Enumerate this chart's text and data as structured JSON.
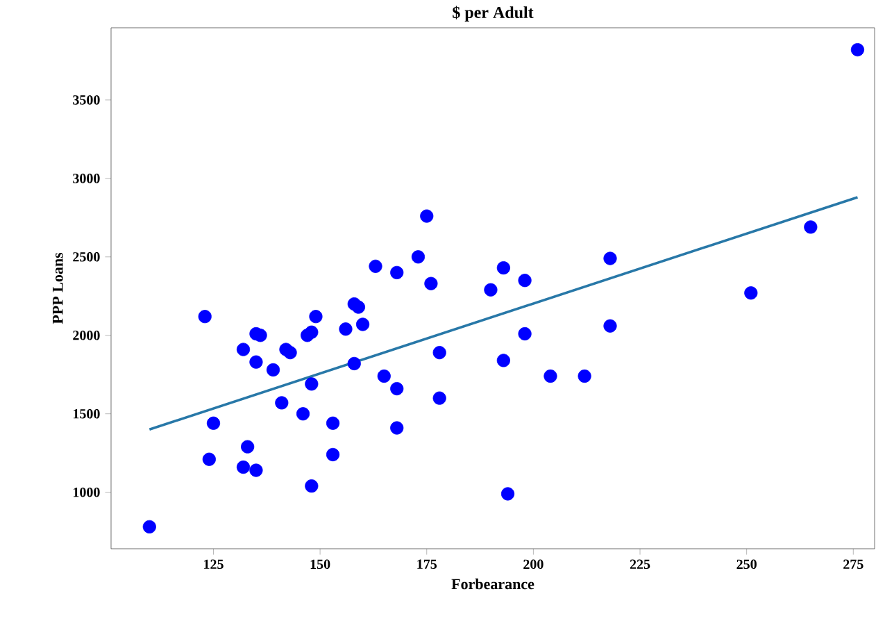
{
  "chart_data": {
    "type": "scatter",
    "title": "$ per Adult",
    "xlabel": "Forbearance",
    "ylabel": "PPP Loans",
    "xlim": [
      101,
      280
    ],
    "ylim": [
      640,
      3960
    ],
    "xticks": [
      125,
      150,
      175,
      200,
      225,
      250,
      275
    ],
    "yticks": [
      1000,
      1500,
      2000,
      2500,
      3000,
      3500
    ],
    "marker": "circle",
    "series": [
      {
        "color": "#0000ff",
        "x": [
          110,
          123,
          125,
          124,
          132,
          135,
          135,
          136,
          139,
          142,
          143,
          141,
          133,
          132,
          135,
          147,
          148,
          149,
          148,
          146,
          148,
          153,
          153,
          158,
          156,
          158,
          159,
          160,
          163,
          165,
          168,
          175,
          173,
          176,
          168,
          168,
          178,
          178,
          190,
          193,
          198,
          198,
          193,
          204,
          212,
          194,
          218,
          218,
          276,
          265,
          251
        ],
        "values": [
          780,
          2120,
          1440,
          1210,
          1910,
          1830,
          2010,
          2000,
          1780,
          1910,
          1890,
          1570,
          1290,
          1160,
          1140,
          2000,
          2020,
          2120,
          1690,
          1500,
          1040,
          1440,
          1240,
          1820,
          2040,
          2200,
          2180,
          2070,
          2440,
          1740,
          2400,
          2760,
          2500,
          2330,
          1660,
          1410,
          1890,
          1600,
          2290,
          2430,
          2350,
          2010,
          1840,
          1740,
          1740,
          990,
          2490,
          2060,
          3820,
          2690,
          2270
        ]
      },
      {
        "type": "line",
        "color": "#2878a8",
        "marker": "none",
        "x": [
          110,
          276
        ],
        "values": [
          1400,
          2880
        ]
      }
    ]
  }
}
